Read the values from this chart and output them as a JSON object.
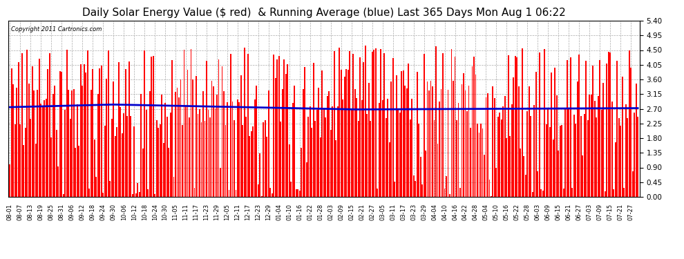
{
  "title": "Daily Solar Energy Value ($ red)  & Running Average (blue) Last 365 Days Mon Aug 1 06:22",
  "copyright": "Copyright 2011 Cartronics.com",
  "yticks": [
    0.0,
    0.45,
    0.9,
    1.35,
    1.8,
    2.25,
    2.7,
    3.15,
    3.6,
    4.05,
    4.5,
    4.95,
    5.4
  ],
  "ylim": [
    0.0,
    5.4
  ],
  "bar_color": "#ff0000",
  "avg_color": "#0000cc",
  "bg_color": "#ffffff",
  "grid_color": "#aaaaaa",
  "title_fontsize": 11,
  "bar_width": 0.75,
  "x_tick_labels": [
    "08-01",
    "08-07",
    "08-13",
    "08-19",
    "08-25",
    "08-31",
    "09-06",
    "09-12",
    "09-18",
    "09-24",
    "09-30",
    "10-06",
    "10-12",
    "10-18",
    "10-24",
    "10-30",
    "11-05",
    "11-11",
    "11-17",
    "11-23",
    "11-29",
    "12-05",
    "12-11",
    "12-17",
    "12-23",
    "12-29",
    "01-04",
    "01-10",
    "01-16",
    "01-22",
    "01-28",
    "02-03",
    "02-09",
    "02-15",
    "02-21",
    "02-27",
    "03-05",
    "03-11",
    "03-17",
    "03-23",
    "03-29",
    "04-04",
    "04-10",
    "04-16",
    "04-22",
    "04-28",
    "05-04",
    "05-10",
    "05-16",
    "05-22",
    "05-28",
    "06-03",
    "06-09",
    "06-15",
    "06-21",
    "06-27",
    "07-03",
    "07-09",
    "07-15",
    "07-21",
    "07-27"
  ],
  "n_days": 365
}
